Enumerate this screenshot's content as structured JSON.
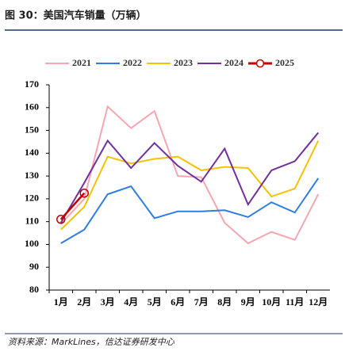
{
  "header": {
    "title": "图 30：美国汽车销量（万辆）"
  },
  "chart_data": {
    "type": "line",
    "categories": [
      "1月",
      "2月",
      "3月",
      "4月",
      "5月",
      "6月",
      "7月",
      "8月",
      "9月",
      "10月",
      "11月",
      "12月"
    ],
    "series": [
      {
        "name": "2021",
        "color": "#f4a7b0",
        "values": [
          109,
          120,
          160.5,
          151,
          158.5,
          130,
          129.5,
          109.5,
          100.5,
          105.5,
          102,
          122
        ]
      },
      {
        "name": "2022",
        "color": "#2e7de1",
        "values": [
          100.5,
          106.5,
          122,
          125.5,
          111.5,
          114.5,
          114.5,
          115,
          112,
          118.5,
          114,
          129
        ]
      },
      {
        "name": "2023",
        "color": "#f5c200",
        "values": [
          106.5,
          116.5,
          138.5,
          135.5,
          137.5,
          138.5,
          132.5,
          134,
          133.5,
          121,
          124.5,
          145.5
        ]
      },
      {
        "name": "2024",
        "color": "#7030a0",
        "values": [
          109.5,
          127,
          145.5,
          133.5,
          144.5,
          134.5,
          127.5,
          142,
          117.5,
          132.5,
          136.5,
          149
        ]
      },
      {
        "name": "2025",
        "color": "#c00000",
        "marker": "circle",
        "values": [
          111,
          122.5,
          null,
          null,
          null,
          null,
          null,
          null,
          null,
          null,
          null,
          null
        ]
      }
    ],
    "ylim": [
      80,
      170
    ],
    "yticks": [
      80,
      90,
      100,
      110,
      120,
      130,
      140,
      150,
      160,
      170
    ],
    "legend": "top"
  },
  "footer": {
    "source": "资料来源：MarkLines，信达证券研发中心"
  }
}
